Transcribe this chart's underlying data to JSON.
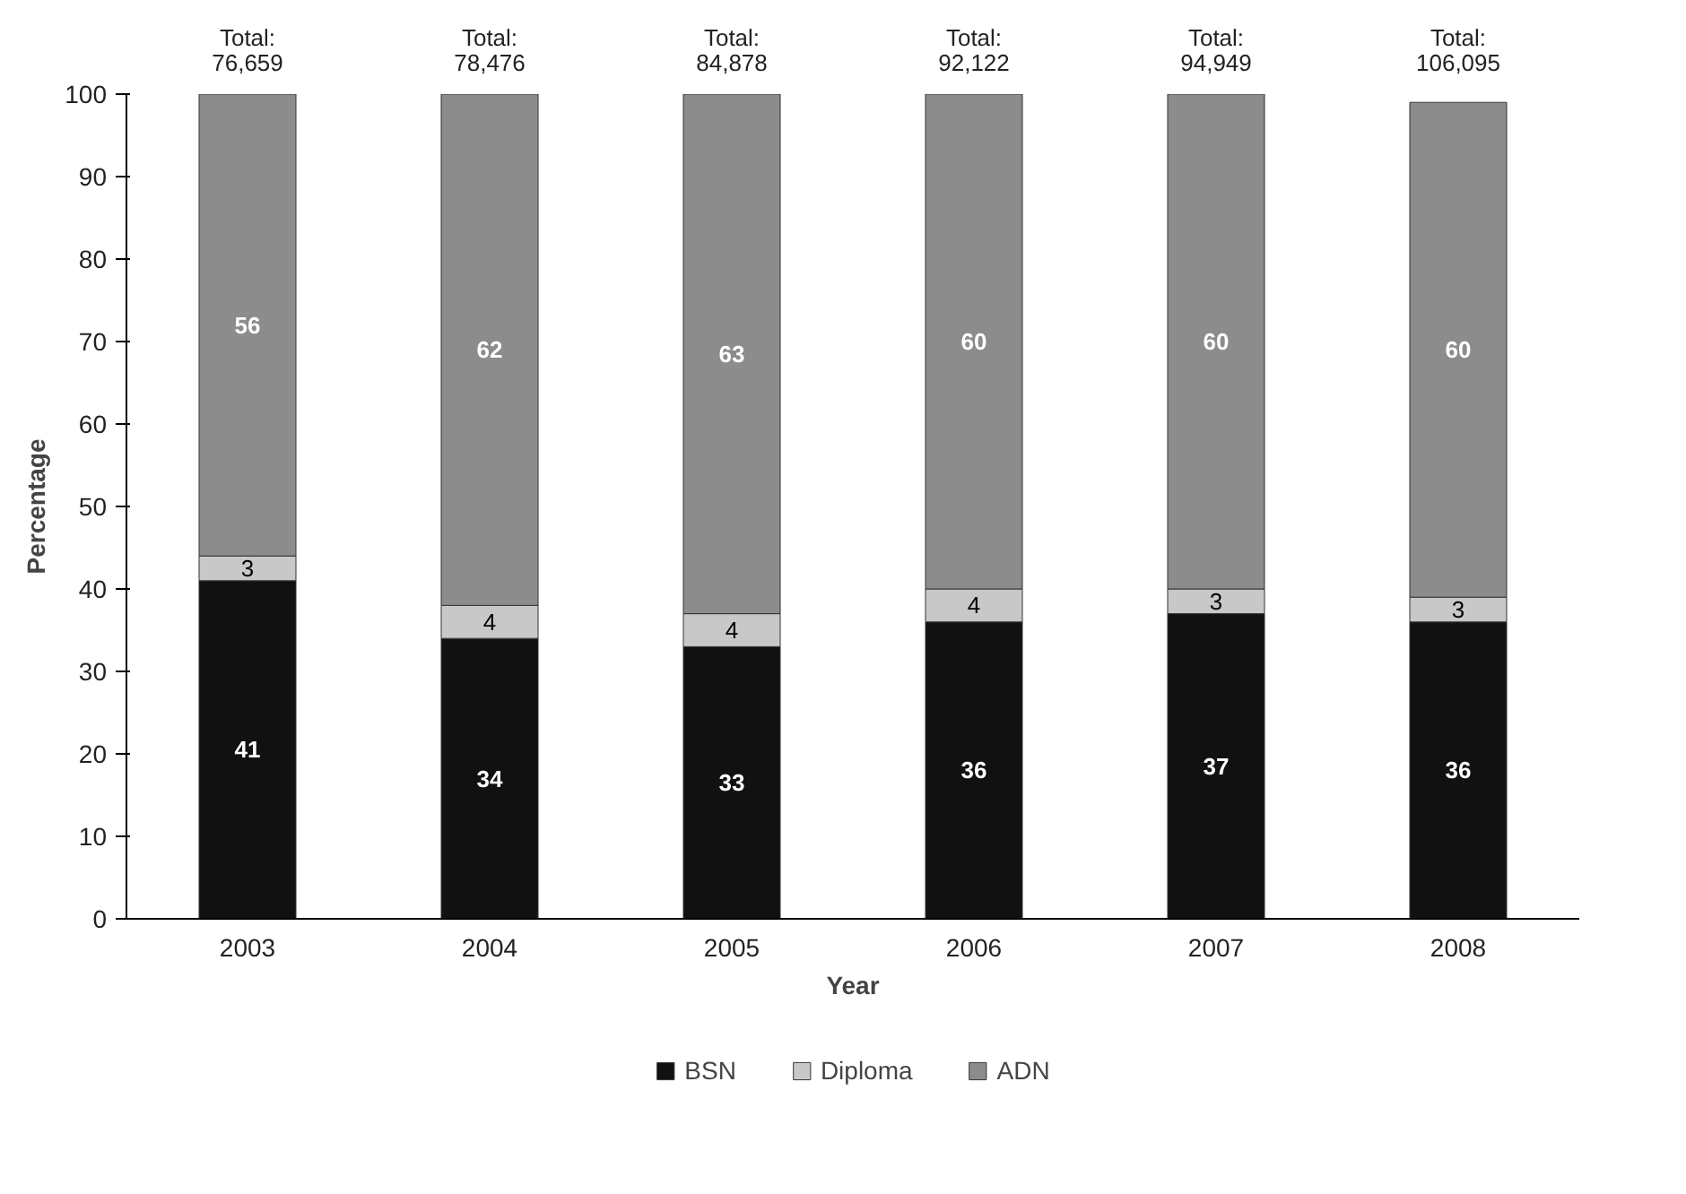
{
  "chart_data": {
    "type": "bar",
    "stacked": true,
    "xlabel": "Year",
    "ylabel": "Percentage",
    "categories": [
      "2003",
      "2004",
      "2005",
      "2006",
      "2007",
      "2008"
    ],
    "series": [
      {
        "name": "BSN",
        "color": "#111111",
        "values": [
          41,
          34,
          33,
          36,
          37,
          36
        ]
      },
      {
        "name": "Diploma",
        "color": "#c8c8c8",
        "values": [
          3,
          4,
          4,
          4,
          3,
          3
        ]
      },
      {
        "name": "ADN",
        "color": "#8c8c8c",
        "values": [
          56,
          62,
          63,
          60,
          60,
          60
        ]
      }
    ],
    "ylim": [
      0,
      100
    ],
    "yticks": [
      0,
      10,
      20,
      30,
      40,
      50,
      60,
      70,
      80,
      90,
      100
    ],
    "data_labels": true,
    "annotations": [
      {
        "text": "Total:\n76,659",
        "x": "2003",
        "y": 100
      },
      {
        "text": "Total:\n78,476",
        "x": "2004",
        "y": 100
      },
      {
        "text": "Total:\n84,878",
        "x": "2005",
        "y": 100
      },
      {
        "text": "Total:\n92,122",
        "x": "2006",
        "y": 100
      },
      {
        "text": "Total:\n94,949",
        "x": "2007",
        "y": 100
      },
      {
        "text": "Total:\n106,095",
        "x": "2008",
        "y": 100
      }
    ],
    "grid": false,
    "legend": "bottom"
  }
}
